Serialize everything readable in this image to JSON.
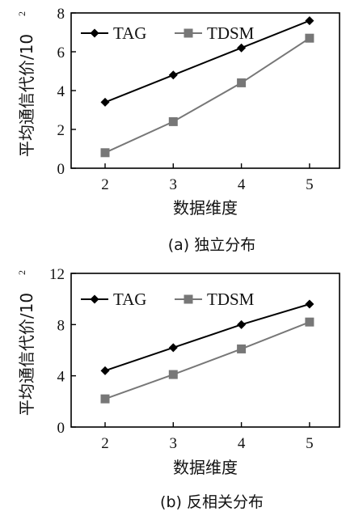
{
  "chart_data": [
    {
      "type": "line",
      "caption": "(a)  独立分布",
      "xlabel": "数据维度",
      "ylabel": "平均通信代价/10",
      "ylabel_exponent": "2",
      "categories": [
        "2",
        "3",
        "4",
        "5"
      ],
      "ylim": [
        0,
        8
      ],
      "yticks": [
        "0",
        "2",
        "4",
        "6",
        "8"
      ],
      "legend_position": "top-left",
      "grid": false,
      "series": [
        {
          "name": "TAG",
          "marker": "diamond",
          "color": "#000000",
          "values": [
            3.4,
            4.8,
            6.2,
            7.6
          ]
        },
        {
          "name": "TDSM",
          "marker": "square",
          "color": "#777777",
          "values": [
            0.8,
            2.4,
            4.4,
            6.7
          ]
        }
      ]
    },
    {
      "type": "line",
      "caption": "(b)  反相关分布",
      "xlabel": "数据维度",
      "ylabel": "平均通信代价/10",
      "ylabel_exponent": "2",
      "categories": [
        "2",
        "3",
        "4",
        "5"
      ],
      "ylim": [
        0,
        12
      ],
      "yticks": [
        "0",
        "4",
        "8",
        "12"
      ],
      "legend_position": "top-left",
      "grid": false,
      "series": [
        {
          "name": "TAG",
          "marker": "diamond",
          "color": "#000000",
          "values": [
            4.4,
            6.2,
            8.0,
            9.6
          ]
        },
        {
          "name": "TDSM",
          "marker": "square",
          "color": "#777777",
          "values": [
            2.2,
            4.1,
            6.1,
            8.2
          ]
        }
      ]
    }
  ]
}
